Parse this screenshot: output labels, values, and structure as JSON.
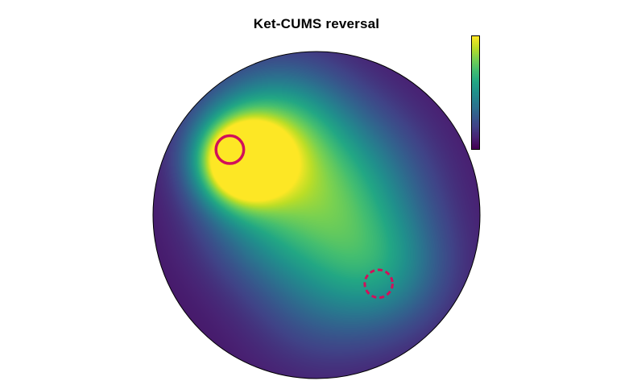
{
  "chart_data": {
    "type": "heatmap",
    "title": "Ket-CUMS reversal",
    "xlabel": "",
    "ylabel": "",
    "colormap": "viridis",
    "colorbar": {
      "orientation": "vertical",
      "placement": "top-right",
      "ticks_shown": false,
      "high": "top",
      "low": "bottom"
    },
    "arena": {
      "shape": "circle",
      "x_range": [
        -1,
        1
      ],
      "y_range": [
        -1,
        1
      ]
    },
    "hotspots": [
      {
        "x": -0.47,
        "y": 0.33,
        "sigma": 0.17,
        "intensity": 1.0
      },
      {
        "x": -0.35,
        "y": 0.42,
        "sigma": 0.28,
        "intensity": 0.45
      },
      {
        "x": -0.15,
        "y": 0.55,
        "sigma": 0.3,
        "intensity": 0.28
      },
      {
        "x": 0.05,
        "y": 0.05,
        "sigma": 0.32,
        "intensity": 0.3
      },
      {
        "x": 0.28,
        "y": -0.22,
        "sigma": 0.35,
        "intensity": 0.26
      },
      {
        "x": 0.45,
        "y": -0.35,
        "sigma": 0.25,
        "intensity": 0.18
      },
      {
        "x": -0.35,
        "y": -0.05,
        "sigma": 0.28,
        "intensity": 0.2
      },
      {
        "x": 0.3,
        "y": 0.3,
        "sigma": 0.3,
        "intensity": 0.15
      },
      {
        "x": 0.0,
        "y": -0.55,
        "sigma": 0.3,
        "intensity": 0.12
      }
    ],
    "background_level": 0.06,
    "platform_markers": [
      {
        "name": "target-platform",
        "style": "solid",
        "color": "#d1105a",
        "x": -0.53,
        "y": 0.4,
        "r": 0.085
      },
      {
        "name": "former-platform",
        "style": "dashed",
        "color": "#d1105a",
        "x": 0.38,
        "y": -0.42,
        "r": 0.085
      }
    ]
  }
}
